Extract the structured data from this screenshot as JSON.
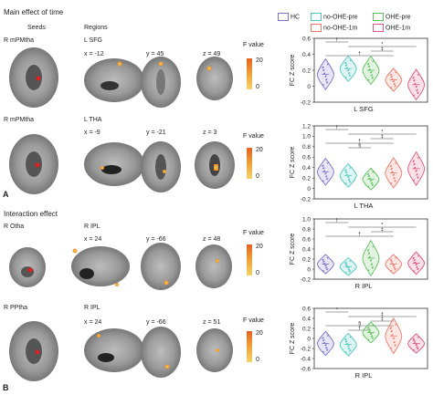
{
  "panel_a": {
    "letter": "A",
    "title": "Main effect of time",
    "col_seeds": "Seeds",
    "col_regions": "Regions",
    "rows": [
      {
        "seed": "R mPMtha",
        "region": "L SFG",
        "coords": [
          "x = -12",
          "y = 45",
          "z = 49"
        ],
        "fvalue_label": "F value",
        "cbar_max": "20",
        "cbar_min": "0"
      },
      {
        "seed": "R mPMtha",
        "region": "L THA",
        "coords": [
          "x = -9",
          "y = -21",
          "z = 3"
        ],
        "fvalue_label": "F value",
        "cbar_max": "20",
        "cbar_min": "0"
      }
    ]
  },
  "panel_b": {
    "letter": "B",
    "title": "Interaction effect",
    "rows": [
      {
        "seed": "R Otha",
        "region": "R IPL",
        "coords": [
          "x = 24",
          "y = -66",
          "z = 48"
        ],
        "fvalue_label": "F value",
        "cbar_max": "20",
        "cbar_min": "0"
      },
      {
        "seed": "R PPtha",
        "region": "R IPL",
        "coords": [
          "x = 24",
          "y = -66",
          "z = 51"
        ],
        "fvalue_label": "F value",
        "cbar_max": "20",
        "cbar_min": "0"
      }
    ]
  },
  "legend": {
    "items": [
      {
        "name": "HC",
        "color": "#7b72c9"
      },
      {
        "name": "no-OHE-pre",
        "color": "#4fc7c0"
      },
      {
        "name": "OHE-pre",
        "color": "#5cc05a"
      },
      {
        "name": "no-OHE-1m",
        "color": "#ef7a6a"
      },
      {
        "name": "OHE-1m",
        "color": "#e0567f"
      }
    ]
  },
  "chart_data": [
    {
      "type": "violin",
      "title": "",
      "xlabel": "L SFG",
      "ylabel": "FC Z score",
      "ylim": [
        -0.2,
        0.6
      ],
      "yticks": [
        "0.6",
        "0.4",
        "0.2",
        "0",
        "-0.2"
      ],
      "categories": [
        "HC",
        "no-OHE-pre",
        "OHE-pre",
        "no-OHE-1m",
        "OHE-1m"
      ],
      "medians": [
        0.15,
        0.22,
        0.2,
        0.08,
        0.02
      ],
      "spreads": [
        0.12,
        0.1,
        0.11,
        0.09,
        0.12
      ],
      "annotations": [
        "†",
        "*",
        "‡",
        "†"
      ]
    },
    {
      "type": "violin",
      "title": "",
      "xlabel": "L THA",
      "ylabel": "FC Z score",
      "ylim": [
        -0.2,
        1.2
      ],
      "yticks": [
        "1.2",
        "1.0",
        "0.8",
        "0.6",
        "0.4",
        "0.2",
        "0",
        "-0.2"
      ],
      "categories": [
        "HC",
        "no-OHE-pre",
        "OHE-pre",
        "no-OHE-1m",
        "OHE-1m"
      ],
      "medians": [
        0.32,
        0.25,
        0.18,
        0.3,
        0.38
      ],
      "spreads": [
        0.16,
        0.14,
        0.13,
        0.18,
        0.2
      ],
      "annotations": [
        "†",
        "*",
        "‡",
        "†",
        "§"
      ]
    },
    {
      "type": "violin",
      "title": "",
      "xlabel": "R IPL",
      "ylabel": "FC Z score",
      "ylim": [
        -0.2,
        1.0
      ],
      "yticks": [
        "1.0",
        "0.8",
        "0.6",
        "0.4",
        "0.2",
        "0",
        "-0.2"
      ],
      "categories": [
        "HC",
        "no-OHE-pre",
        "OHE-pre",
        "no-OHE-1m",
        "OHE-1m"
      ],
      "medians": [
        0.1,
        0.05,
        0.22,
        0.1,
        0.12
      ],
      "spreads": [
        0.12,
        0.11,
        0.22,
        0.12,
        0.14
      ],
      "annotations": [
        "†",
        "*",
        "‡",
        "†"
      ]
    },
    {
      "type": "violin",
      "title": "",
      "xlabel": "R IPL",
      "ylabel": "FC Z score",
      "ylim": [
        -0.6,
        0.6
      ],
      "yticks": [
        "0.6",
        "0.4",
        "0.2",
        "0",
        "-0.2",
        "-0.4",
        "-0.6"
      ],
      "categories": [
        "HC",
        "no-OHE-pre",
        "OHE-pre",
        "no-OHE-1m",
        "OHE-1m"
      ],
      "medians": [
        -0.1,
        -0.12,
        0.12,
        0.05,
        -0.1
      ],
      "spreads": [
        0.15,
        0.14,
        0.13,
        0.22,
        0.12
      ],
      "annotations": [
        "*",
        "‡",
        "‡",
        "§",
        "†"
      ]
    }
  ]
}
